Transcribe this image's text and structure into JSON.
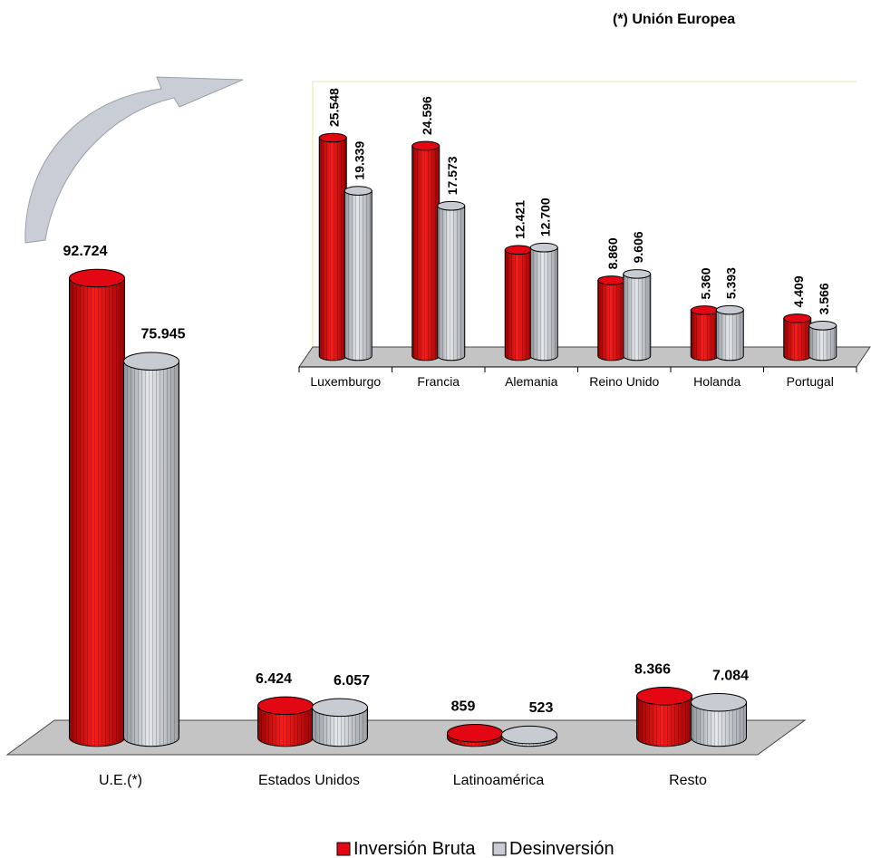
{
  "colors": {
    "inversion": "#e30613",
    "inversion_dark": "#8b0000",
    "desinversion": "#c8ccd2",
    "desinversion_dark": "#7f858c",
    "floor": "#c4c4c4",
    "arrow": "#c9ced6"
  },
  "legend": {
    "inversion": "Inversión Bruta",
    "desinversion": "Desinversión"
  },
  "chart_data": [
    {
      "type": "bar",
      "title": "",
      "categories": [
        "U.E.(*)",
        "Estados Unidos",
        "Latinoamérica",
        "Resto"
      ],
      "series": [
        {
          "name": "Inversión Bruta",
          "values": [
            92724,
            6424,
            859,
            8366
          ],
          "labels": [
            "92.724",
            "6.424",
            "859",
            "8.366"
          ]
        },
        {
          "name": "Desinversión",
          "values": [
            75945,
            6057,
            523,
            7084
          ],
          "labels": [
            "75.945",
            "6.057",
            "523",
            "7.084"
          ]
        }
      ]
    },
    {
      "type": "bar",
      "title": "(*) Unión Europea",
      "categories": [
        "Luxemburgo",
        "Francia",
        "Alemania",
        "Reino Unido",
        "Holanda",
        "Portugal"
      ],
      "series": [
        {
          "name": "Inversión Bruta",
          "values": [
            25548,
            24596,
            12421,
            8860,
            5360,
            4409
          ],
          "labels": [
            "25.548",
            "24.596",
            "12.421",
            "8.860",
            "5.360",
            "4.409"
          ]
        },
        {
          "name": "Desinversión",
          "values": [
            19339,
            17573,
            12700,
            9606,
            5393,
            3566
          ],
          "labels": [
            "19.339",
            "17.573",
            "12.700",
            "9.606",
            "5.393",
            "3.566"
          ]
        }
      ]
    }
  ]
}
